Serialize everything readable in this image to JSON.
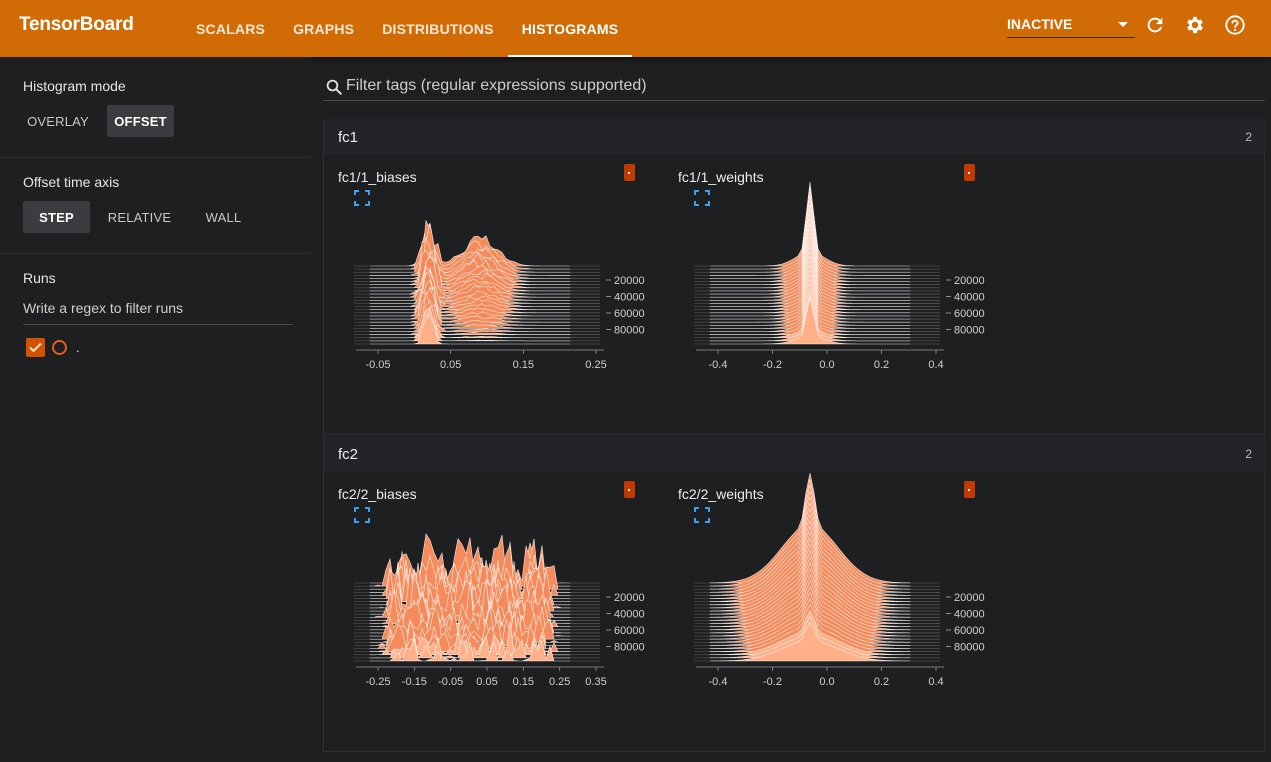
{
  "app": {
    "title": "TensorBoard"
  },
  "nav": {
    "tabs": [
      {
        "label": "SCALARS"
      },
      {
        "label": "GRAPHS"
      },
      {
        "label": "DISTRIBUTIONS"
      },
      {
        "label": "HISTOGRAMS"
      }
    ],
    "active_tab": "HISTOGRAMS",
    "run_state": "INACTIVE"
  },
  "sidebar": {
    "histogram_mode": {
      "title": "Histogram mode",
      "options": [
        "OVERLAY",
        "OFFSET"
      ],
      "selected": "OFFSET"
    },
    "offset_axis": {
      "title": "Offset time axis",
      "options": [
        "STEP",
        "RELATIVE",
        "WALL"
      ],
      "selected": "STEP"
    },
    "runs": {
      "title": "Runs",
      "filter_placeholder": "Write a regex to filter runs",
      "items": [
        {
          "name": ".",
          "checked": true
        }
      ]
    }
  },
  "main": {
    "filter_placeholder": "Filter tags (regular expressions supported)",
    "groups": [
      {
        "name": "fc1",
        "count": "2",
        "cards": [
          {
            "title": "fc1/1_biases",
            "x_ticks": [
              "-0.05",
              "0.05",
              "0.15",
              "0.25"
            ],
            "y_ticks": [
              "20000",
              "40000",
              "60000",
              "80000"
            ]
          },
          {
            "title": "fc1/1_weights",
            "x_ticks": [
              "-0.4",
              "-0.2",
              "0.0",
              "0.2",
              "0.4"
            ],
            "y_ticks": [
              "20000",
              "40000",
              "60000",
              "80000"
            ]
          }
        ]
      },
      {
        "name": "fc2",
        "count": "2",
        "cards": [
          {
            "title": "fc2/2_biases",
            "x_ticks": [
              "-0.25",
              "-0.15",
              "-0.05",
              "0.05",
              "0.15",
              "0.25",
              "0.35"
            ],
            "y_ticks": [
              "20000",
              "40000",
              "60000",
              "80000"
            ]
          },
          {
            "title": "fc2/2_weights",
            "x_ticks": [
              "-0.4",
              "-0.2",
              "0.0",
              "0.2",
              "0.4"
            ],
            "y_ticks": [
              "20000",
              "40000",
              "60000",
              "80000"
            ]
          }
        ]
      }
    ]
  },
  "colors": {
    "brand": "#d06b06",
    "histogram_fill": "#f58a5a",
    "histogram_front": "#ffb089",
    "badge": "#c23a00"
  }
}
